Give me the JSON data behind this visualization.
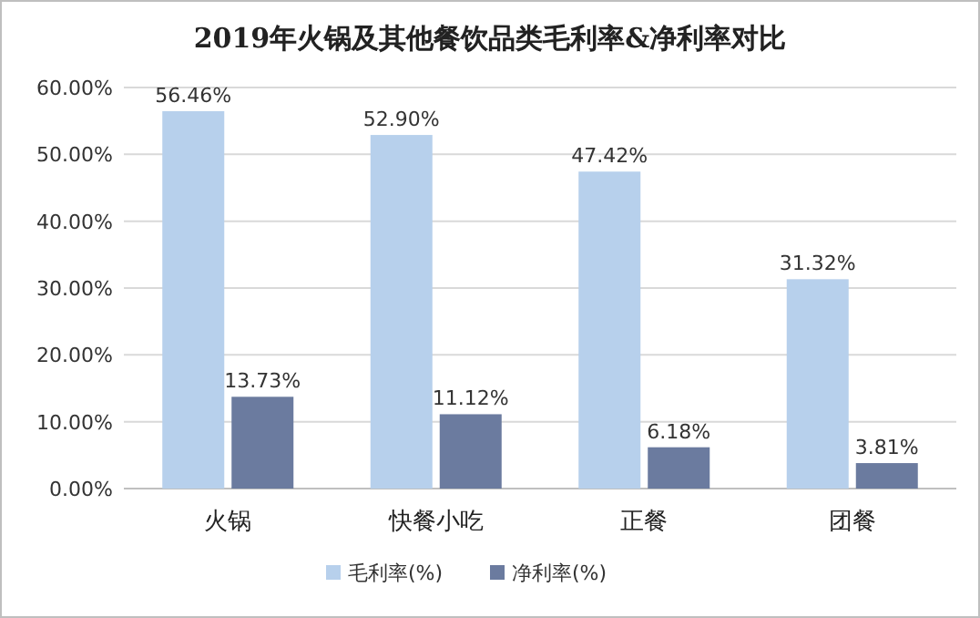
{
  "chart_data": {
    "type": "bar",
    "title": "2019年火锅及其他餐饮品类毛利率&净利率对比",
    "categories": [
      "火锅",
      "快餐小吃",
      "正餐",
      "团餐"
    ],
    "series": [
      {
        "name": "毛利率(%)",
        "color": "#b7d0ec",
        "values": [
          56.46,
          52.9,
          47.42,
          31.32
        ],
        "value_labels": [
          "56.46%",
          "52.90%",
          "47.42%",
          "31.32%"
        ]
      },
      {
        "name": "净利率(%)",
        "color": "#6b7b9f",
        "values": [
          13.73,
          11.12,
          6.18,
          3.81
        ],
        "value_labels": [
          "13.73%",
          "11.12%",
          "6.18%",
          "3.81%"
        ]
      }
    ],
    "ylim": [
      0,
      60
    ],
    "yticks": [
      {
        "value": 0,
        "label": "0.00%"
      },
      {
        "value": 10,
        "label": "10.00%"
      },
      {
        "value": 20,
        "label": "20.00%"
      },
      {
        "value": 30,
        "label": "30.00%"
      },
      {
        "value": 40,
        "label": "40.00%"
      },
      {
        "value": 50,
        "label": "50.00%"
      },
      {
        "value": 60,
        "label": "60.00%"
      }
    ],
    "grid": "y",
    "legend": "bottom"
  }
}
